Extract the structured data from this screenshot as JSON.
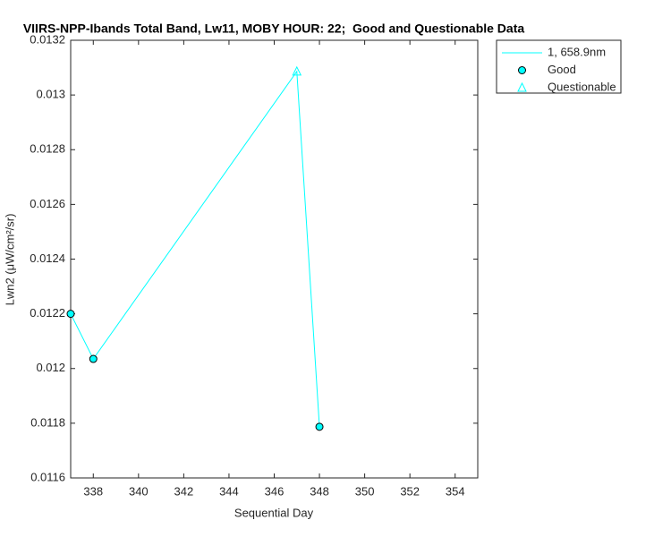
{
  "chart_data": {
    "type": "line",
    "title": "VIIRS-NPP-Ibands Total Band, Lw11, MOBY HOUR: 22;  Good and Questionable Data",
    "x_label": "Sequential Day",
    "y_label": "Lwn2 (μW/cm²/sr)",
    "x": [
      337,
      338,
      347,
      348
    ],
    "series": [
      {
        "name": "1, 658.9nm",
        "color": "#00ffff",
        "values": [
          0.0122,
          0.012035,
          0.013086,
          0.011787
        ]
      },
      {
        "name": "Good",
        "color": "#00ffff",
        "marker": "circle",
        "values": [
          0.0122,
          0.012035,
          null,
          0.011787
        ]
      },
      {
        "name": "Questionable",
        "color": "#00ffff",
        "marker": "triangle",
        "values": [
          null,
          null,
          0.013086,
          null
        ]
      }
    ],
    "xlim": [
      337,
      355
    ],
    "xticks": [
      338,
      340,
      342,
      344,
      346,
      348,
      350,
      352,
      354
    ],
    "ylim": [
      0.0116,
      0.0132
    ],
    "yticks": [
      0.0116,
      0.0118,
      0.012,
      0.0122,
      0.0124,
      0.0126,
      0.0128,
      0.013,
      0.0132
    ],
    "legend": "outside-top-right"
  }
}
